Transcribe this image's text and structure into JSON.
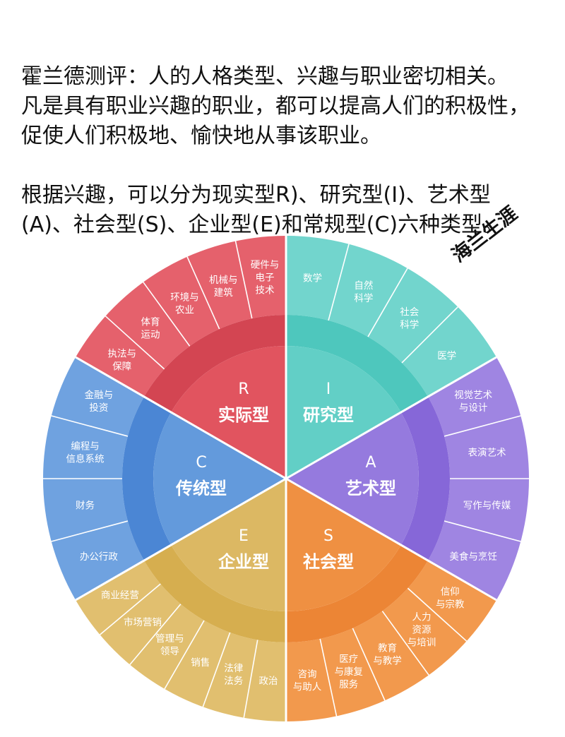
{
  "intro": {
    "line1": "霍兰德测评：人的人格类型、兴趣与职业密切相关。",
    "line2": "凡是具有职业兴趣的职业，都可以提高人们的积极性，",
    "line3": "促使人们积极地、愉快地从事该职业。",
    "line4": "根据兴趣，可以分为现实型R)、研究型(I)、艺术型",
    "line5": "(A)、社会型(S)、企业型(E)和常规型(C)六种类型。"
  },
  "watermark": "海兰生涯",
  "wheel": {
    "categories": [
      {
        "letter": "R",
        "name": "实际型",
        "colors": {
          "outer": "#e5616c",
          "ring": "#d34552",
          "inner": "#e1545f"
        },
        "fields": [
          [
            "执法与",
            "保障"
          ],
          [
            "体育",
            "运动"
          ],
          [
            "环境与",
            "农业"
          ],
          [
            "机械与",
            "建筑"
          ],
          [
            "硬件与",
            "电子",
            "技术"
          ]
        ]
      },
      {
        "letter": "I",
        "name": "研究型",
        "colors": {
          "outer": "#72d5cd",
          "ring": "#4ec7bd",
          "inner": "#62cfc6"
        },
        "fields": [
          [
            "数学"
          ],
          [
            "自然",
            "科学"
          ],
          [
            "社会",
            "科学"
          ],
          [
            "医学"
          ]
        ]
      },
      {
        "letter": "A",
        "name": "艺术型",
        "colors": {
          "outer": "#9f85e2",
          "ring": "#8667d8",
          "inner": "#957ade"
        },
        "fields": [
          [
            "视觉艺术",
            "与设计"
          ],
          [
            "表演艺术"
          ],
          [
            "写作与传媒"
          ],
          [
            "美食与烹饪"
          ]
        ]
      },
      {
        "letter": "S",
        "name": "社会型",
        "colors": {
          "outer": "#f2994d",
          "ring": "#ec8535",
          "inner": "#ef9042"
        },
        "fields": [
          [
            "信仰",
            "与宗教"
          ],
          [
            "人力",
            "资源",
            "与培训"
          ],
          [
            "教育",
            "与教学"
          ],
          [
            "医疗",
            "与康复",
            "服务"
          ],
          [
            "咨询",
            "与助人"
          ]
        ]
      },
      {
        "letter": "E",
        "name": "企业型",
        "colors": {
          "outer": "#e1bf6f",
          "ring": "#d6ae4f",
          "inner": "#dcb863"
        },
        "fields": [
          [
            "政治"
          ],
          [
            "法律",
            "法务"
          ],
          [
            "销售"
          ],
          [
            "管理与",
            "领导"
          ],
          [
            "市场营销"
          ],
          [
            "商业经营"
          ]
        ]
      },
      {
        "letter": "C",
        "name": "传统型",
        "colors": {
          "outer": "#6fa2e0",
          "ring": "#4b86d4",
          "inner": "#639adc"
        },
        "fields": [
          [
            "办公行政"
          ],
          [
            "财务"
          ],
          [
            "编程与",
            "信息系统"
          ],
          [
            "金融与",
            "投资"
          ]
        ]
      }
    ]
  }
}
